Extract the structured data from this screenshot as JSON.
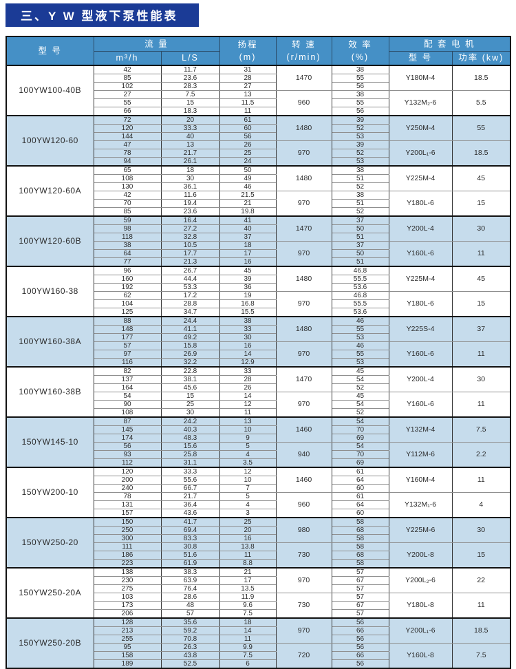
{
  "title": "三、Y W 型液下泵性能表",
  "colors": {
    "title_bg": "#1b3b96",
    "header_bg": "#4590c6",
    "shaded_row_bg": "#c6dcec",
    "border": "#111111"
  },
  "header": {
    "model": "型  号",
    "flow": "流  量",
    "flow_m3h": "m³/h",
    "flow_ls": "L/S",
    "head": "扬程",
    "head_unit": "(m)",
    "speed": "转 速",
    "speed_unit": "(r/min)",
    "eff": "效 率",
    "eff_unit": "(%)",
    "motor": "配 套 电 机",
    "motor_model": "型  号",
    "motor_power": "功率 (kw)"
  },
  "groups": [
    {
      "model": "100YW100-40B",
      "halves": [
        {
          "speed": "1470",
          "motor": "Y180M-4",
          "power": "18.5",
          "rows": [
            [
              "42",
              "11.7",
              "31",
              "38"
            ],
            [
              "85",
              "23.6",
              "28",
              "55"
            ],
            [
              "102",
              "28.3",
              "27",
              "56"
            ]
          ]
        },
        {
          "speed": "960",
          "motor": "Y132M₂-6",
          "power": "5.5",
          "rows": [
            [
              "27",
              "7.5",
              "13",
              "38"
            ],
            [
              "55",
              "15",
              "11.5",
              "55"
            ],
            [
              "66",
              "18.3",
              "11",
              "56"
            ]
          ]
        }
      ]
    },
    {
      "model": "100YW120-60",
      "halves": [
        {
          "speed": "1480",
          "motor": "Y250M-4",
          "power": "55",
          "rows": [
            [
              "72",
              "20",
              "61",
              "39"
            ],
            [
              "120",
              "33.3",
              "60",
              "52"
            ],
            [
              "144",
              "40",
              "56",
              "53"
            ]
          ]
        },
        {
          "speed": "970",
          "motor": "Y200L₁-6",
          "power": "18.5",
          "rows": [
            [
              "47",
              "13",
              "26",
              "39"
            ],
            [
              "78",
              "21.7",
              "25",
              "52"
            ],
            [
              "94",
              "26.1",
              "24",
              "53"
            ]
          ]
        }
      ]
    },
    {
      "model": "100YW120-60A",
      "halves": [
        {
          "speed": "1480",
          "motor": "Y225M-4",
          "power": "45",
          "rows": [
            [
              "65",
              "18",
              "50",
              "38"
            ],
            [
              "108",
              "30",
              "49",
              "51"
            ],
            [
              "130",
              "36.1",
              "46",
              "52"
            ]
          ]
        },
        {
          "speed": "970",
          "motor": "Y180L-6",
          "power": "15",
          "rows": [
            [
              "42",
              "11.6",
              "21.5",
              "38"
            ],
            [
              "70",
              "19.4",
              "21",
              "51"
            ],
            [
              "85",
              "23.6",
              "19.8",
              "52"
            ]
          ]
        }
      ]
    },
    {
      "model": "100YW120-60B",
      "halves": [
        {
          "speed": "1470",
          "motor": "Y200L-4",
          "power": "30",
          "rows": [
            [
              "59",
              "16.4",
              "41",
              "37"
            ],
            [
              "98",
              "27.2",
              "40",
              "50"
            ],
            [
              "118",
              "32.8",
              "37",
              "51"
            ]
          ]
        },
        {
          "speed": "970",
          "motor": "Y160L-6",
          "power": "11",
          "rows": [
            [
              "38",
              "10.5",
              "18",
              "37"
            ],
            [
              "64",
              "17.7",
              "17",
              "50"
            ],
            [
              "77",
              "21.3",
              "16",
              "51"
            ]
          ]
        }
      ]
    },
    {
      "model": "100YW160-38",
      "halves": [
        {
          "speed": "1480",
          "motor": "Y225M-4",
          "power": "45",
          "rows": [
            [
              "96",
              "26.7",
              "45",
              "46.8"
            ],
            [
              "160",
              "44.4",
              "39",
              "55.5"
            ],
            [
              "192",
              "53.3",
              "36",
              "53.6"
            ]
          ]
        },
        {
          "speed": "970",
          "motor": "Y180L-6",
          "power": "15",
          "rows": [
            [
              "62",
              "17.2",
              "19",
              "46.8"
            ],
            [
              "104",
              "28.8",
              "16.8",
              "55.5"
            ],
            [
              "125",
              "34.7",
              "15.5",
              "53.6"
            ]
          ]
        }
      ]
    },
    {
      "model": "100YW160-38A",
      "halves": [
        {
          "speed": "1480",
          "motor": "Y225S-4",
          "power": "37",
          "rows": [
            [
              "88",
              "24.4",
              "38",
              "46"
            ],
            [
              "148",
              "41.1",
              "33",
              "55"
            ],
            [
              "177",
              "49.2",
              "30",
              "53"
            ]
          ]
        },
        {
          "speed": "970",
          "motor": "Y160L-6",
          "power": "11",
          "rows": [
            [
              "57",
              "15.8",
              "16",
              "46"
            ],
            [
              "97",
              "26.9",
              "14",
              "55"
            ],
            [
              "116",
              "32.2",
              "12.9",
              "53"
            ]
          ]
        }
      ]
    },
    {
      "model": "100YW160-38B",
      "halves": [
        {
          "speed": "1470",
          "motor": "Y200L-4",
          "power": "30",
          "rows": [
            [
              "82",
              "22.8",
              "33",
              "45"
            ],
            [
              "137",
              "38.1",
              "28",
              "54"
            ],
            [
              "164",
              "45.6",
              "26",
              "52"
            ]
          ]
        },
        {
          "speed": "970",
          "motor": "Y160L-6",
          "power": "11",
          "rows": [
            [
              "54",
              "15",
              "14",
              "45"
            ],
            [
              "90",
              "25",
              "12",
              "54"
            ],
            [
              "108",
              "30",
              "11",
              "52"
            ]
          ]
        }
      ]
    },
    {
      "model": "150YW145-10",
      "halves": [
        {
          "speed": "1460",
          "motor": "Y132M-4",
          "power": "7.5",
          "rows": [
            [
              "87",
              "24.2",
              "13",
              "54"
            ],
            [
              "145",
              "40.3",
              "10",
              "70"
            ],
            [
              "174",
              "48.3",
              "9",
              "69"
            ]
          ]
        },
        {
          "speed": "940",
          "motor": "Y112M-6",
          "power": "2.2",
          "rows": [
            [
              "56",
              "15.6",
              "5",
              "54"
            ],
            [
              "93",
              "25.8",
              "4",
              "70"
            ],
            [
              "112",
              "31.1",
              "3.5",
              "69"
            ]
          ]
        }
      ]
    },
    {
      "model": "150YW200-10",
      "halves": [
        {
          "speed": "1460",
          "motor": "Y160M-4",
          "power": "11",
          "rows": [
            [
              "120",
              "33.3",
              "12",
              "61"
            ],
            [
              "200",
              "55.6",
              "10",
              "64"
            ],
            [
              "240",
              "66.7",
              "7",
              "60"
            ]
          ]
        },
        {
          "speed": "960",
          "motor": "Y132M₁-6",
          "power": "4",
          "rows": [
            [
              "78",
              "21.7",
              "5",
              "61"
            ],
            [
              "131",
              "36.4",
              "4",
              "64"
            ],
            [
              "157",
              "43.6",
              "3",
              "60"
            ]
          ]
        }
      ]
    },
    {
      "model": "150YW250-20",
      "halves": [
        {
          "speed": "980",
          "motor": "Y225M-6",
          "power": "30",
          "rows": [
            [
              "150",
              "41.7",
              "25",
              "58"
            ],
            [
              "250",
              "69.4",
              "20",
              "68"
            ],
            [
              "300",
              "83.3",
              "16",
              "58"
            ]
          ]
        },
        {
          "speed": "730",
          "motor": "Y200L-8",
          "power": "15",
          "rows": [
            [
              "111",
              "30.8",
              "13.8",
              "58"
            ],
            [
              "186",
              "51.6",
              "11",
              "68"
            ],
            [
              "223",
              "61.9",
              "8.8",
              "58"
            ]
          ]
        }
      ]
    },
    {
      "model": "150YW250-20A",
      "halves": [
        {
          "speed": "970",
          "motor": "Y200L₂-6",
          "power": "22",
          "rows": [
            [
              "138",
              "38.3",
              "21",
              "57"
            ],
            [
              "230",
              "63.9",
              "17",
              "67"
            ],
            [
              "275",
              "76.4",
              "13.5",
              "57"
            ]
          ]
        },
        {
          "speed": "730",
          "motor": "Y180L-8",
          "power": "11",
          "rows": [
            [
              "103",
              "28.6",
              "11.9",
              "57"
            ],
            [
              "173",
              "48",
              "9.6",
              "67"
            ],
            [
              "206",
              "57",
              "7.5",
              "57"
            ]
          ]
        }
      ]
    },
    {
      "model": "150YW250-20B",
      "halves": [
        {
          "speed": "970",
          "motor": "Y200L₁-6",
          "power": "18.5",
          "rows": [
            [
              "128",
              "35.6",
              "18",
              "56"
            ],
            [
              "213",
              "59.2",
              "14",
              "66"
            ],
            [
              "255",
              "70.8",
              "11",
              "56"
            ]
          ]
        },
        {
          "speed": "720",
          "motor": "Y160L-8",
          "power": "7.5",
          "rows": [
            [
              "95",
              "26.3",
              "9.9",
              "56"
            ],
            [
              "158",
              "43.8",
              "7.5",
              "66"
            ],
            [
              "189",
              "52.5",
              "6",
              "56"
            ]
          ]
        }
      ]
    }
  ]
}
